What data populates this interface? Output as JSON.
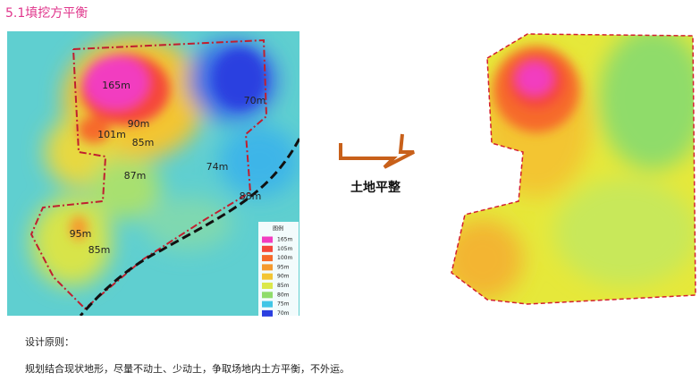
{
  "header": {
    "title": "5.1填挖方平衡"
  },
  "left_map": {
    "labels": [
      "165m",
      "70m",
      "90m",
      "101m",
      "85m",
      "87m",
      "74m",
      "88m",
      "95m",
      "85m"
    ]
  },
  "legend": {
    "title": "图例",
    "items": [
      {
        "label": "165m",
        "color": "#f23cc0"
      },
      {
        "label": "105m",
        "color": "#f5473a"
      },
      {
        "label": "100m",
        "color": "#f66a2a"
      },
      {
        "label": "95m",
        "color": "#f59a2e"
      },
      {
        "label": "90m",
        "color": "#f3c533"
      },
      {
        "label": "85m",
        "color": "#dbe84a"
      },
      {
        "label": "80m",
        "color": "#8fdc6a"
      },
      {
        "label": "75m",
        "color": "#3fc6e6"
      },
      {
        "label": "70m",
        "color": "#2a3fe0"
      }
    ]
  },
  "arrow": {
    "label": "土地平整"
  },
  "principles": {
    "heading": "设计原则：",
    "text": "规划结合现状地形，尽量不动土、少动土，争取场地内土方平衡，不外运。"
  }
}
